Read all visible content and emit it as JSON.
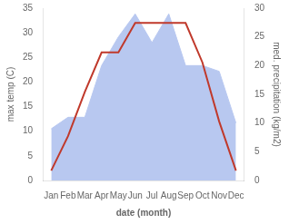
{
  "chart_data": {
    "type": "line",
    "xlabel": "date (month)",
    "ylabel": "max temp (C)",
    "y2label": "med. precipitation (kg/m2)",
    "categories": [
      "Jan",
      "Feb",
      "Mar",
      "Apr",
      "May",
      "Jun",
      "Jul",
      "Aug",
      "Sep",
      "Oct",
      "Nov",
      "Dec"
    ],
    "series": [
      {
        "type": "area",
        "axis": "y2",
        "color": "#b8c8f0",
        "values": [
          9,
          11,
          11,
          20,
          25,
          29,
          24,
          29,
          20,
          20,
          19,
          10
        ]
      },
      {
        "type": "line",
        "color": "#c0392b",
        "values": [
          2,
          9,
          18,
          26,
          26,
          32,
          32,
          32,
          32,
          24,
          12,
          2
        ]
      }
    ],
    "ylim": [
      0,
      35
    ],
    "yticks": [
      0,
      5,
      10,
      15,
      20,
      25,
      30,
      35
    ],
    "y2lim": [
      0,
      30
    ],
    "y2ticks": [
      0,
      5,
      10,
      15,
      20,
      25,
      30
    ],
    "grid": false
  }
}
